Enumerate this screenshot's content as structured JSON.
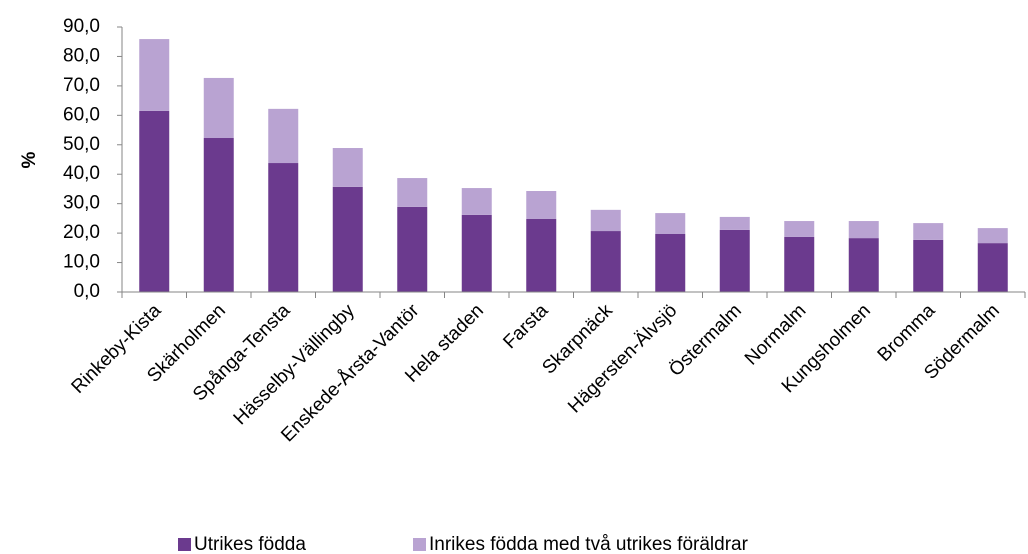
{
  "chart_data": {
    "type": "stacked_bar",
    "y_label": "%",
    "categories": [
      "Rinkeby-Kista",
      "Skärholmen",
      "Spånga-Tensta",
      "Hässelby-Vällingby",
      "Enskede-Årsta-Vantör",
      "Hela staden",
      "Farsta",
      "Skarpnäck",
      "Hägersten-Älvsjö",
      "Östermalm",
      "Normalm",
      "Kungsholmen",
      "Bromma",
      "Södermalm"
    ],
    "series": [
      {
        "name": "Utrikes födda",
        "color": "#6b3a8e",
        "values": [
          61.5,
          52.3,
          43.8,
          35.7,
          28.9,
          26.2,
          24.8,
          20.7,
          19.7,
          21.1,
          18.7,
          18.3,
          17.7,
          16.6
        ]
      },
      {
        "name": "Inrikes födda med två utrikes föräldrar",
        "color": "#b9a3d2",
        "values": [
          24.4,
          20.4,
          18.4,
          13.2,
          9.8,
          9.1,
          9.5,
          7.2,
          7.1,
          4.4,
          5.4,
          5.8,
          5.7,
          5.1
        ]
      }
    ],
    "ylim": [
      0,
      90
    ],
    "yticks": [
      {
        "value": 0,
        "label": "0,0"
      },
      {
        "value": 10,
        "label": "10,0"
      },
      {
        "value": 20,
        "label": "20,0"
      },
      {
        "value": 30,
        "label": "30,0"
      },
      {
        "value": 40,
        "label": "40,0"
      },
      {
        "value": 50,
        "label": "50,0"
      },
      {
        "value": 60,
        "label": "60,0"
      },
      {
        "value": 70,
        "label": "70,0"
      },
      {
        "value": 80,
        "label": "80,0"
      },
      {
        "value": 90,
        "label": "90,0"
      }
    ],
    "grid": false,
    "legend": "bottom"
  }
}
